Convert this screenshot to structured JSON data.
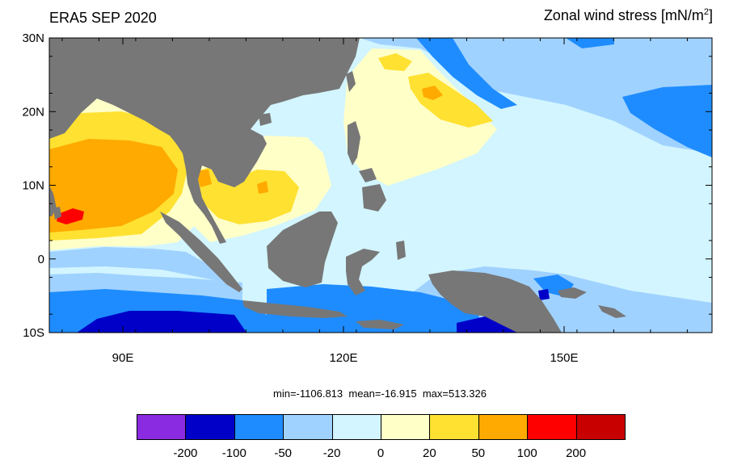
{
  "title_left": "ERA5 SEP 2020",
  "title_right_main": "Zonal wind stress [mN/m",
  "title_right_sup": "2",
  "title_right_end": "]",
  "lat_labels": [
    "30N",
    "20N",
    "10N",
    "0",
    "10S"
  ],
  "lon_labels": [
    "90E",
    "120E",
    "150E"
  ],
  "stats": {
    "min_label": "min=",
    "min": "-1106.813",
    "mean_label": "mean=",
    "mean": "-16.915",
    "max_label": "max=",
    "max": "513.326"
  },
  "colorbar": {
    "colors": [
      "#8a2be2",
      "#0000c8",
      "#1e8cff",
      "#a0d2ff",
      "#d2f5ff",
      "#ffffc8",
      "#ffe132",
      "#ffaa00",
      "#ff0000",
      "#c80000"
    ],
    "labels": [
      "-200",
      "-100",
      "-50",
      "-20",
      "0",
      "20",
      "50",
      "100",
      "200"
    ]
  },
  "map_colors": {
    "land": "#777777",
    "ocean_base": "#d2f5ff"
  }
}
